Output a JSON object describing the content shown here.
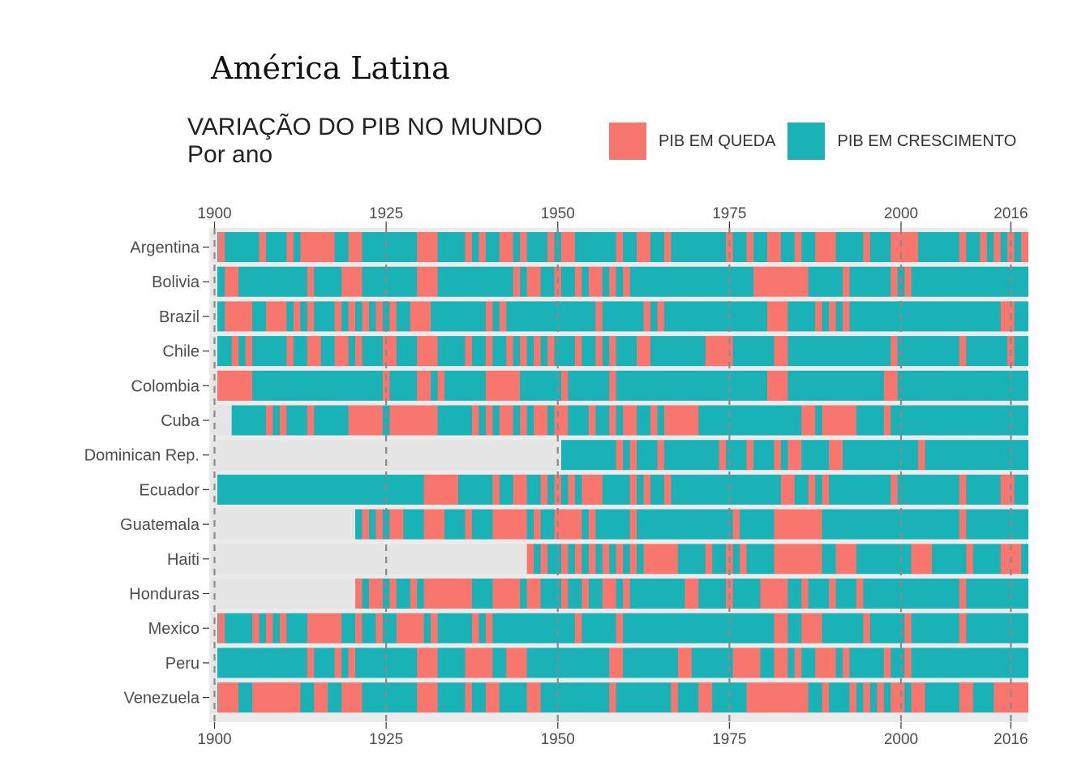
{
  "chart_data": {
    "type": "heatmap",
    "title": "América Latina",
    "subtitle_line1": "VARIAÇÃO DO PIB NO MUNDO",
    "subtitle_line2": "Por ano",
    "legend": [
      {
        "label": "PIB EM QUEDA",
        "color": "#F8766D"
      },
      {
        "label": "PIB EM CRESCIMENTO",
        "color": "#19B2B7"
      }
    ],
    "missing_color": "#E5E5E5",
    "legend_placement": "top",
    "x_ticks": [
      "1900",
      "1925",
      "1950",
      "1975",
      "2000",
      "2016"
    ],
    "xlim": [
      1900,
      2018
    ],
    "grid": "dashed vertical lines at ticks",
    "countries": [
      {
        "name": "Argentina",
        "start": 1900,
        "declines": [
          1901,
          1907,
          1911,
          1913,
          1914,
          1915,
          1916,
          1917,
          1920,
          1921,
          1930,
          1931,
          1932,
          1937,
          1939,
          1942,
          1943,
          1945,
          1949,
          1951,
          1952,
          1959,
          1962,
          1963,
          1966,
          1975,
          1978,
          1981,
          1982,
          1985,
          1988,
          1989,
          1990,
          1995,
          1999,
          2000,
          2001,
          2002,
          2009,
          2012,
          2014,
          2016,
          2018
        ]
      },
      {
        "name": "Bolivia",
        "start": 1900,
        "declines": [
          1902,
          1903,
          1914,
          1919,
          1920,
          1921,
          1930,
          1931,
          1932,
          1944,
          1946,
          1947,
          1950,
          1953,
          1955,
          1956,
          1958,
          1960,
          1979,
          1980,
          1981,
          1982,
          1983,
          1984,
          1985,
          1986,
          1992,
          1999,
          2001
        ]
      },
      {
        "name": "Brazil",
        "start": 1900,
        "declines": [
          1902,
          1903,
          1904,
          1905,
          1908,
          1909,
          1910,
          1912,
          1914,
          1918,
          1920,
          1922,
          1924,
          1926,
          1929,
          1930,
          1931,
          1940,
          1942,
          1956,
          1963,
          1965,
          1981,
          1982,
          1983,
          1988,
          1990,
          1992,
          2015,
          2016
        ]
      },
      {
        "name": "Chile",
        "start": 1900,
        "declines": [
          1903,
          1905,
          1911,
          1914,
          1915,
          1918,
          1919,
          1921,
          1925,
          1926,
          1930,
          1931,
          1932,
          1937,
          1940,
          1943,
          1945,
          1947,
          1949,
          1953,
          1956,
          1958,
          1962,
          1963,
          1972,
          1973,
          1974,
          1975,
          1982,
          1983,
          1999,
          2009,
          2016
        ]
      },
      {
        "name": "Colombia",
        "start": 1900,
        "declines": [
          1900,
          1901,
          1902,
          1903,
          1904,
          1905,
          1925,
          1930,
          1931,
          1933,
          1940,
          1941,
          1942,
          1943,
          1944,
          1951,
          1958,
          1981,
          1982,
          1983,
          1998,
          1999
        ]
      },
      {
        "name": "Cuba",
        "start": 1903,
        "declines": [
          1908,
          1910,
          1914,
          1920,
          1921,
          1922,
          1923,
          1924,
          1926,
          1927,
          1928,
          1929,
          1930,
          1931,
          1932,
          1938,
          1940,
          1942,
          1943,
          1945,
          1947,
          1948,
          1950,
          1951,
          1955,
          1958,
          1960,
          1961,
          1964,
          1966,
          1967,
          1968,
          1969,
          1970,
          1986,
          1987,
          1989,
          1990,
          1991,
          1992,
          1993,
          1998
        ]
      },
      {
        "name": "Dominican Rep.",
        "start": 1951,
        "declines": [
          1959,
          1961,
          1965,
          1974,
          1978,
          1982,
          1984,
          1985,
          1990,
          1991,
          2003
        ]
      },
      {
        "name": "Ecuador",
        "start": 1900,
        "declines": [
          1931,
          1932,
          1933,
          1934,
          1935,
          1941,
          1944,
          1945,
          1948,
          1950,
          1952,
          1954,
          1955,
          1956,
          1961,
          1963,
          1966,
          1983,
          1984,
          1987,
          1989,
          1999,
          2009,
          2015,
          2016
        ]
      },
      {
        "name": "Guatemala",
        "start": 1921,
        "declines": [
          1922,
          1924,
          1926,
          1927,
          1931,
          1932,
          1933,
          1937,
          1941,
          1942,
          1943,
          1944,
          1945,
          1947,
          1950,
          1951,
          1952,
          1953,
          1955,
          1961,
          1976,
          1982,
          1983,
          1984,
          1985,
          1986,
          1987,
          1988,
          2009
        ]
      },
      {
        "name": "Haiti",
        "start": 1946,
        "declines": [
          1946,
          1948,
          1951,
          1953,
          1955,
          1957,
          1959,
          1961,
          1963,
          1964,
          1965,
          1966,
          1967,
          1972,
          1975,
          1977,
          1982,
          1983,
          1984,
          1985,
          1986,
          1987,
          1988,
          1991,
          1992,
          1993,
          2002,
          2003,
          2004,
          2010,
          2015,
          2016,
          2017
        ]
      },
      {
        "name": "Honduras",
        "start": 1921,
        "declines": [
          1921,
          1923,
          1924,
          1926,
          1929,
          1931,
          1932,
          1933,
          1934,
          1935,
          1936,
          1937,
          1941,
          1942,
          1943,
          1944,
          1946,
          1947,
          1951,
          1954,
          1957,
          1958,
          1960,
          1969,
          1970,
          1975,
          1980,
          1981,
          1982,
          1983,
          1986,
          1990,
          1994,
          2009
        ]
      },
      {
        "name": "Mexico",
        "start": 1900,
        "declines": [
          1901,
          1906,
          1908,
          1910,
          1914,
          1915,
          1916,
          1917,
          1918,
          1921,
          1924,
          1927,
          1928,
          1929,
          1930,
          1932,
          1938,
          1940,
          1953,
          1959,
          1982,
          1983,
          1986,
          1987,
          1988,
          1995,
          2001,
          2009
        ]
      },
      {
        "name": "Peru",
        "start": 1900,
        "declines": [
          1914,
          1918,
          1920,
          1930,
          1931,
          1932,
          1937,
          1938,
          1939,
          1940,
          1943,
          1944,
          1945,
          1958,
          1959,
          1968,
          1969,
          1976,
          1977,
          1978,
          1979,
          1982,
          1983,
          1985,
          1988,
          1989,
          1990,
          1992,
          1998,
          2001
        ]
      },
      {
        "name": "Venezuela",
        "start": 1900,
        "declines": [
          1901,
          1902,
          1903,
          1906,
          1907,
          1908,
          1909,
          1910,
          1911,
          1912,
          1915,
          1916,
          1919,
          1920,
          1921,
          1930,
          1931,
          1932,
          1937,
          1940,
          1941,
          1946,
          1947,
          1958,
          1967,
          1971,
          1972,
          1978,
          1979,
          1980,
          1981,
          1982,
          1983,
          1984,
          1985,
          1986,
          1989,
          1993,
          1995,
          1997,
          1999,
          2000,
          2002,
          2003,
          2009,
          2010,
          2014,
          2015,
          2016,
          2017,
          2018
        ]
      }
    ]
  }
}
